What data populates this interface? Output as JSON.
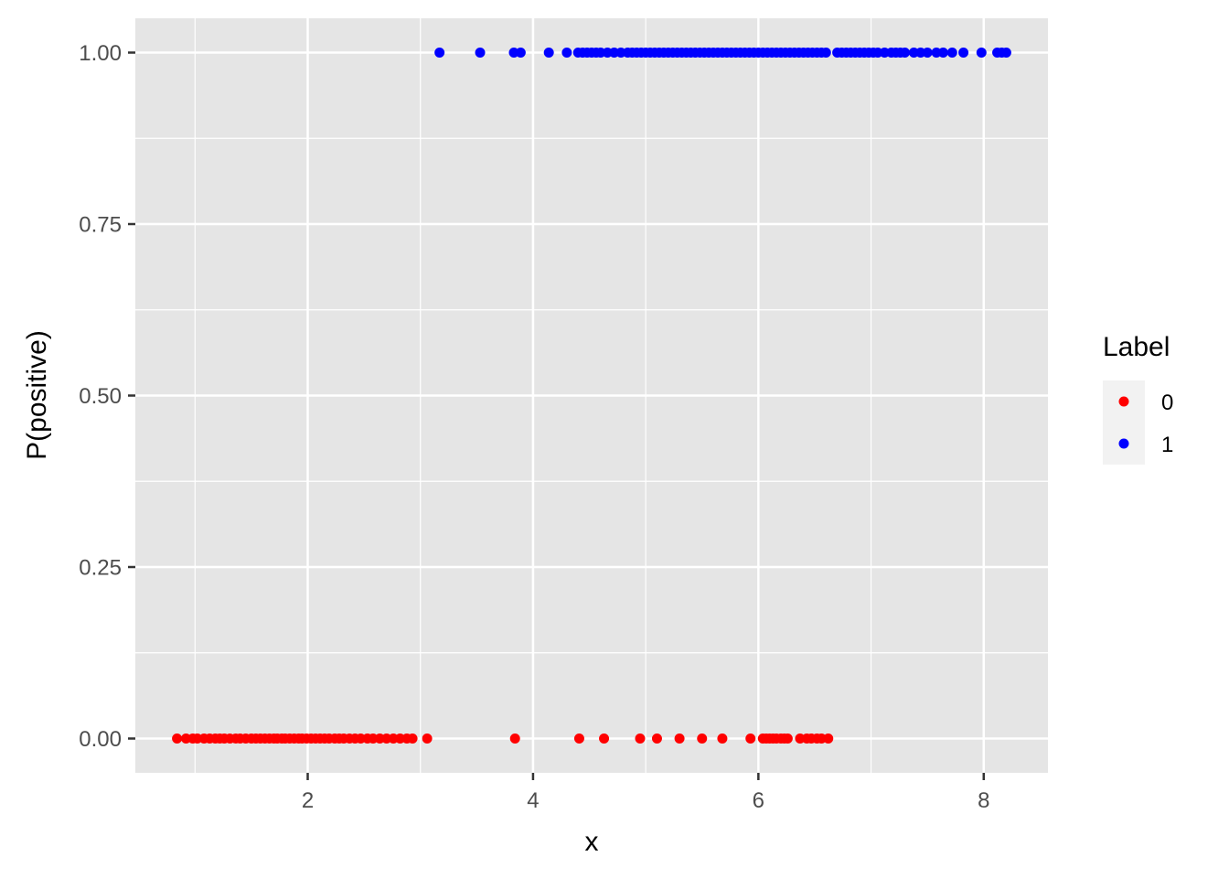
{
  "chart_data": {
    "type": "scatter",
    "title": "",
    "xlabel": "x",
    "ylabel": "P(positive)",
    "xlim": [
      0.47,
      8.57
    ],
    "ylim": [
      -0.05,
      1.05
    ],
    "x_ticks": [
      {
        "value": 2,
        "label": "2"
      },
      {
        "value": 4,
        "label": "4"
      },
      {
        "value": 6,
        "label": "6"
      },
      {
        "value": 8,
        "label": "8"
      }
    ],
    "y_ticks": [
      {
        "value": 0,
        "label": "0.00"
      },
      {
        "value": 0.25,
        "label": "0.25"
      },
      {
        "value": 0.5,
        "label": "0.50"
      },
      {
        "value": 0.75,
        "label": "0.75"
      },
      {
        "value": 1,
        "label": "1.00"
      }
    ],
    "grid": true,
    "legend": {
      "title": "Label",
      "placement": "right"
    },
    "series": [
      {
        "name": "0",
        "color": "#ff0000",
        "y": 0,
        "x": [
          0.84,
          0.92,
          0.98,
          1.02,
          1.08,
          1.13,
          1.18,
          1.22,
          1.26,
          1.31,
          1.36,
          1.4,
          1.45,
          1.5,
          1.54,
          1.58,
          1.62,
          1.66,
          1.7,
          1.73,
          1.77,
          1.8,
          1.84,
          1.88,
          1.92,
          1.95,
          1.99,
          2.03,
          2.07,
          2.11,
          2.15,
          2.19,
          2.24,
          2.28,
          2.32,
          2.37,
          2.42,
          2.47,
          2.53,
          2.58,
          2.64,
          2.7,
          2.76,
          2.82,
          2.88,
          2.93,
          3.06,
          3.84,
          4.41,
          4.63,
          4.95,
          5.1,
          5.3,
          5.5,
          5.68,
          5.93,
          6.04,
          6.07,
          6.1,
          6.13,
          6.16,
          6.2,
          6.23,
          6.26,
          6.37,
          6.43,
          6.47,
          6.52,
          6.56,
          6.62
        ]
      },
      {
        "name": "1",
        "color": "#0000ff",
        "y": 1,
        "x": [
          3.17,
          3.53,
          3.83,
          3.89,
          4.14,
          4.3,
          4.4,
          4.44,
          4.48,
          4.52,
          4.56,
          4.6,
          4.66,
          4.72,
          4.78,
          4.84,
          4.88,
          4.92,
          4.96,
          5.0,
          5.04,
          5.08,
          5.12,
          5.16,
          5.2,
          5.24,
          5.28,
          5.32,
          5.36,
          5.4,
          5.44,
          5.48,
          5.52,
          5.56,
          5.6,
          5.64,
          5.68,
          5.72,
          5.76,
          5.8,
          5.84,
          5.88,
          5.92,
          5.96,
          6.0,
          6.04,
          6.08,
          6.12,
          6.16,
          6.2,
          6.24,
          6.28,
          6.32,
          6.36,
          6.4,
          6.44,
          6.48,
          6.52,
          6.56,
          6.6,
          6.7,
          6.74,
          6.78,
          6.82,
          6.86,
          6.9,
          6.94,
          6.98,
          7.02,
          7.06,
          7.12,
          7.18,
          7.22,
          7.26,
          7.3,
          7.38,
          7.44,
          7.5,
          7.58,
          7.64,
          7.72,
          7.82,
          7.98,
          8.12,
          8.16,
          8.2
        ]
      }
    ]
  }
}
